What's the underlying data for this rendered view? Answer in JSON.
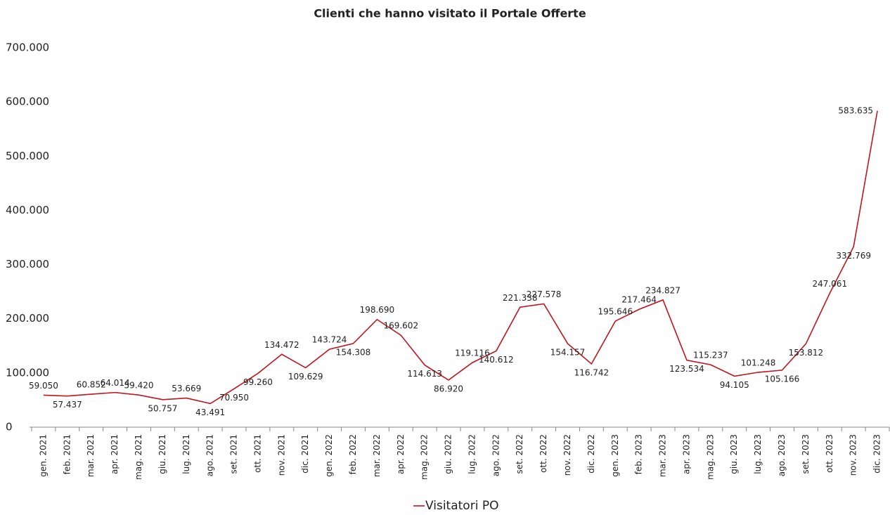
{
  "chart_data": {
    "type": "line",
    "title": "Clienti che hanno visitato il Portale Offerte",
    "categories": [
      "gen. 2021",
      "feb. 2021",
      "mar. 2021",
      "apr. 2021",
      "mag. 2021",
      "giu. 2021",
      "lug. 2021",
      "ago. 2021",
      "set. 2021",
      "ott. 2021",
      "nov. 2021",
      "dic. 2021",
      "gen. 2022",
      "feb. 2022",
      "mar. 2022",
      "apr. 2022",
      "mag. 2022",
      "giu. 2022",
      "lug. 2022",
      "ago. 2022",
      "set. 2022",
      "ott. 2022",
      "nov. 2022",
      "dic. 2022",
      "gen. 2023",
      "feb. 2023",
      "mar. 2023",
      "apr. 2023",
      "mag. 2023",
      "giu. 2023",
      "lug. 2023",
      "ago. 2023",
      "set. 2023",
      "ott. 2023",
      "nov. 2023",
      "dic. 2023"
    ],
    "series": [
      {
        "name": "Visitatori PO",
        "color": "#c0141e",
        "values": [
          59050,
          57437,
          60852,
          64014,
          59420,
          50757,
          53669,
          43491,
          70950,
          99260,
          134472,
          109629,
          143724,
          154308,
          198690,
          169602,
          114613,
          86920,
          119116,
          140612,
          221338,
          227578,
          154157,
          116742,
          195646,
          217464,
          234827,
          123534,
          115237,
          94105,
          101248,
          105166,
          153812,
          247061,
          332769,
          583635
        ],
        "value_labels": [
          "59.050",
          "57.437",
          "60.852",
          "64.014",
          "59.420",
          "50.757",
          "53.669",
          "43.491",
          "70.950",
          "99.260",
          "134.472",
          "109.629",
          "143.724",
          "154.308",
          "198.690",
          "169.602",
          "114.613",
          "86.920",
          "119.116",
          "140.612",
          "221.338",
          "227.578",
          "154.157",
          "116.742",
          "195.646",
          "217.464",
          "234.827",
          "123.534",
          "115.237",
          "94.105",
          "101.248",
          "105.166",
          "153.812",
          "247.061",
          "332.769",
          "583.635"
        ]
      }
    ],
    "ylim": [
      0,
      700000
    ],
    "yticks": [
      0,
      {
        "value": 100000,
        "label": "100.000"
      },
      {
        "value": 200000,
        "label": "200.000"
      },
      {
        "value": 300000,
        "label": "300.000"
      },
      {
        "value": 400000,
        "label": "400.000"
      },
      {
        "value": 500000,
        "label": "500.000"
      },
      {
        "value": 600000,
        "label": "600.000"
      },
      {
        "value": 700000,
        "label": "700.000"
      }
    ],
    "legend": "bottom"
  }
}
